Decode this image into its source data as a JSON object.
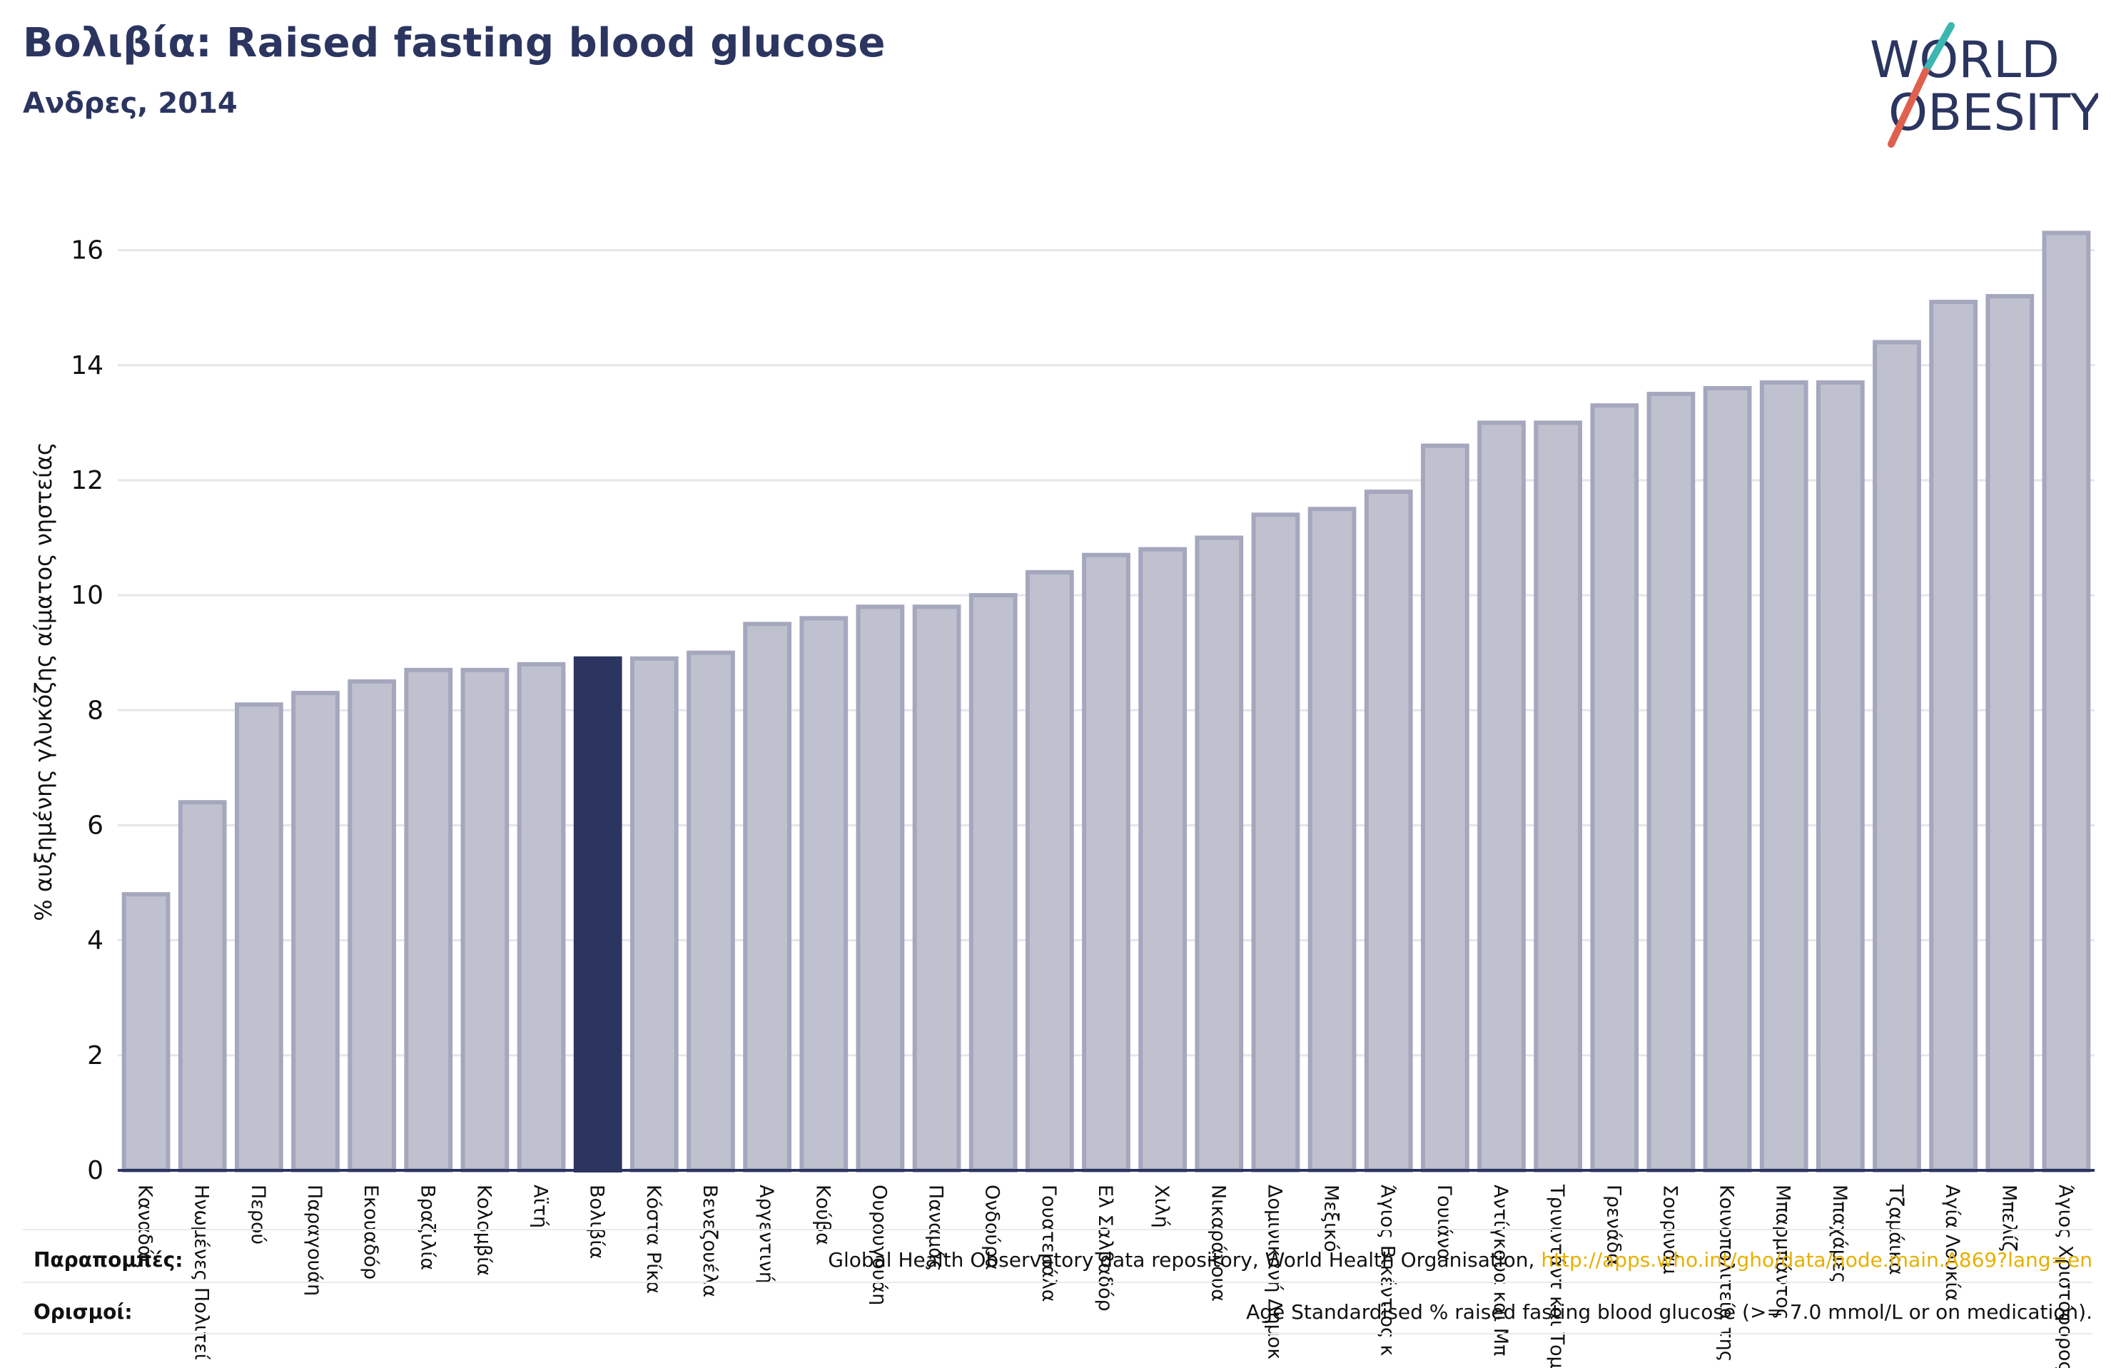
{
  "header": {
    "title": "Βολιβία: Raised fasting blood glucose",
    "subtitle": "Ανδρες, 2014"
  },
  "logo": {
    "line1": "WORLD",
    "line2": "OBESITY",
    "colors": {
      "text": "#2b3560",
      "slash_teal": "#3bb6b0",
      "slash_red": "#e0604f"
    }
  },
  "colors": {
    "bar_fill": "#bfc1ce",
    "bar_stroke": "#a4a7bd",
    "highlight": "#2b3560",
    "axis": "#2b3560",
    "grid": "#e6e6ea"
  },
  "chart_data": {
    "type": "bar",
    "ylabel": "% αυξημένης γλυκόζης αίματος νηστείας",
    "xlabel": "",
    "ylim": [
      0,
      17
    ],
    "yticks": [
      0,
      2,
      4,
      6,
      8,
      10,
      12,
      14,
      16
    ],
    "grid": true,
    "highlight": "Βολιβία",
    "categories": [
      "Καναδάς",
      "Ηνωμένες Πολιτεί",
      "Περού",
      "Παραγουάη",
      "Εκουαδόρ",
      "Βραζιλία",
      "Κολομβία",
      "Αϊτή",
      "Βολιβία",
      "Κόστα Ρίκα",
      "Βενεζουέλα",
      "Αργεντινή",
      "Κούβα",
      "Ουρουγουάη",
      "Παναμάς",
      "Ονδούρα",
      "Γουατεμάλα",
      "Ελ Σαλβαδόρ",
      "Χιλή",
      "Νικαράγουα",
      "Δομινικανή Δημοκ",
      "Μεξικό",
      "Άγιος Βικέντιος κ",
      "Γουιάνα",
      "Αντίγκουα και Μπ",
      "Τρινιντάντ και Τομ",
      "Γρενάδα",
      "Σουρινάμ",
      "Κοινοπολιτεία της",
      "Μπαρμπάντος",
      "Μπαχάμες",
      "Τζαμάικα",
      "Αγία Λουκία",
      "Μπελίζ",
      "Άγιος Χριστόφορος"
    ],
    "values": [
      4.8,
      6.4,
      8.1,
      8.3,
      8.5,
      8.7,
      8.7,
      8.8,
      8.9,
      8.9,
      9.0,
      9.5,
      9.6,
      9.8,
      9.8,
      10.0,
      10.4,
      10.7,
      10.8,
      11.0,
      11.4,
      11.5,
      11.8,
      12.6,
      13.0,
      13.0,
      13.3,
      13.5,
      13.6,
      13.7,
      13.7,
      14.4,
      15.1,
      15.2,
      16.3
    ]
  },
  "footer": {
    "sources_label": "Παραπομπές:",
    "sources_text": "Global Health Observatory data repository, World Health Organisation, ",
    "sources_link": "http://apps.who.int/gho/data/node.main.A869?lang=en",
    "definitions_label": "Ορισμοί:",
    "definitions_text": "Age Standardised % raised fasting blood glucose (>= 7.0 mmol/L or on medication)."
  }
}
